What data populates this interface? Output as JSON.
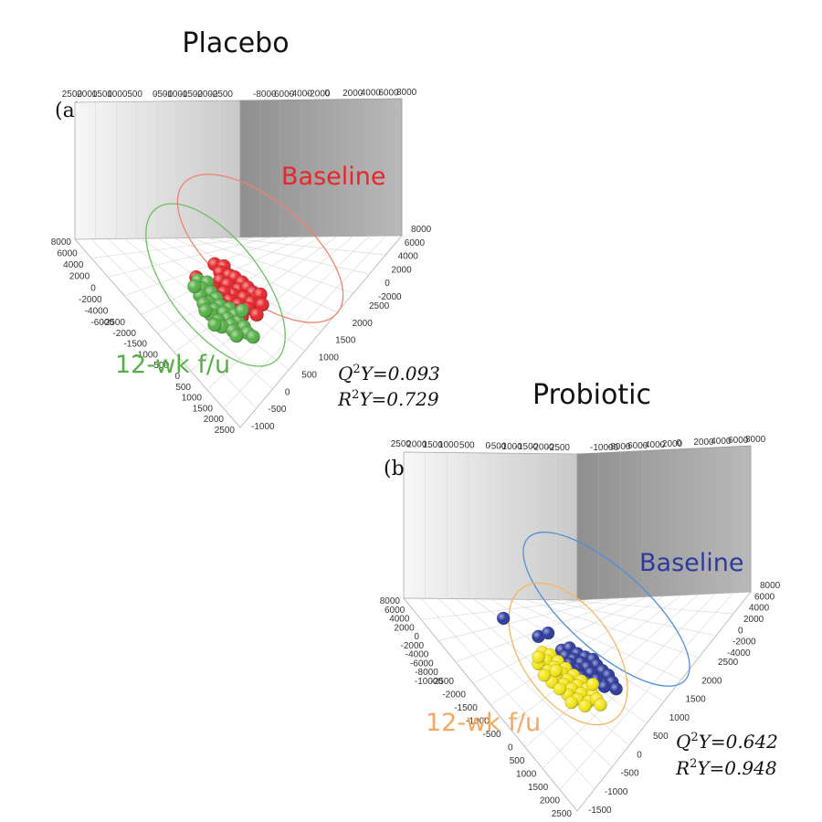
{
  "chart_data": [
    {
      "type": "scatter",
      "title": "Placebo",
      "panel_label": "(a)",
      "axis_top_ticks": [
        "-2500",
        "-2000",
        "-1500",
        "-1000",
        "-500",
        "0",
        "500",
        "1000",
        "1500",
        "2000",
        "2500"
      ],
      "axis_right_ticks": [
        "-8000",
        "-6000",
        "-4000",
        "-2000",
        "0",
        "2000",
        "4000",
        "6000",
        "8000"
      ],
      "axis_left_ticks": [
        "8000",
        "6000",
        "4000",
        "2000",
        "0",
        "-2000",
        "-4000",
        "-6000"
      ],
      "axis_bottom_ticks": [
        "-2500",
        "-2000",
        "-1500",
        "-1000",
        "-500",
        "0",
        "500",
        "1000",
        "1500",
        "2000",
        "2500"
      ],
      "axis_far_right_ticks": [
        "8000",
        "6000",
        "4000",
        "2000",
        "0",
        "-2000"
      ],
      "axis_bottom_right_ticks": [
        "2500",
        "2000",
        "1500",
        "1000",
        "500",
        "0",
        "-500",
        "-1000"
      ],
      "series": [
        {
          "name": "Baseline",
          "color": "#e8262a",
          "ellipse_color": "#f0836f",
          "points": [
            [
              0.37,
              0.22
            ],
            [
              0.42,
              0.24
            ],
            [
              0.4,
              0.3
            ],
            [
              0.45,
              0.33
            ],
            [
              0.4,
              0.38
            ],
            [
              0.48,
              0.35
            ],
            [
              0.52,
              0.4
            ],
            [
              0.44,
              0.42
            ],
            [
              0.36,
              0.45
            ],
            [
              0.5,
              0.47
            ],
            [
              0.55,
              0.45
            ],
            [
              0.58,
              0.5
            ],
            [
              0.47,
              0.52
            ],
            [
              0.42,
              0.5
            ],
            [
              0.53,
              0.55
            ],
            [
              0.6,
              0.56
            ],
            [
              0.39,
              0.55
            ],
            [
              0.45,
              0.58
            ],
            [
              0.57,
              0.6
            ],
            [
              0.5,
              0.62
            ],
            [
              0.62,
              0.52
            ],
            [
              0.34,
              0.52
            ],
            [
              0.55,
              0.66
            ],
            [
              0.48,
              0.68
            ],
            [
              0.41,
              0.62
            ],
            [
              0.63,
              0.62
            ],
            [
              0.32,
              0.48
            ],
            [
              0.27,
              0.35
            ],
            [
              0.6,
              0.72
            ],
            [
              0.52,
              0.74
            ]
          ]
        },
        {
          "name": "12-wk f/u",
          "color": "#56b046",
          "ellipse_color": "#6cc060",
          "points": [
            [
              0.28,
              0.38
            ],
            [
              0.33,
              0.4
            ],
            [
              0.3,
              0.46
            ],
            [
              0.35,
              0.5
            ],
            [
              0.29,
              0.53
            ],
            [
              0.38,
              0.56
            ],
            [
              0.34,
              0.6
            ],
            [
              0.4,
              0.63
            ],
            [
              0.31,
              0.61
            ],
            [
              0.45,
              0.66
            ],
            [
              0.37,
              0.67
            ],
            [
              0.42,
              0.7
            ],
            [
              0.48,
              0.72
            ],
            [
              0.35,
              0.72
            ],
            [
              0.44,
              0.76
            ],
            [
              0.39,
              0.78
            ],
            [
              0.5,
              0.79
            ],
            [
              0.46,
              0.82
            ],
            [
              0.41,
              0.84
            ],
            [
              0.53,
              0.84
            ],
            [
              0.47,
              0.88
            ],
            [
              0.55,
              0.9
            ],
            [
              0.32,
              0.68
            ],
            [
              0.52,
              0.68
            ],
            [
              0.26,
              0.44
            ],
            [
              0.58,
              0.94
            ],
            [
              0.37,
              0.82
            ],
            [
              0.49,
              0.93
            ]
          ]
        }
      ],
      "stats": {
        "q_label": "Q",
        "q_sup": "2",
        "q_tail": "Y=0.093",
        "r_label": "R",
        "r_sup": "2",
        "r_tail": "Y=0.729"
      }
    },
    {
      "type": "scatter",
      "title": "Probiotic",
      "panel_label": "(b)",
      "axis_top_ticks": [
        "-2500",
        "-2000",
        "-1500",
        "-1000",
        "-500",
        "0",
        "500",
        "1000",
        "1500",
        "2000",
        "2500"
      ],
      "axis_right_ticks": [
        "-10000",
        "-8000",
        "-6000",
        "-4000",
        "-2000",
        "0",
        "2000",
        "4000",
        "6000",
        "8000"
      ],
      "axis_left_ticks": [
        "8000",
        "6000",
        "4000",
        "2000",
        "0",
        "-2000",
        "-4000",
        "-6000",
        "-8000",
        "-10000"
      ],
      "axis_bottom_ticks": [
        "-2500",
        "-2000",
        "-1500",
        "-1000",
        "-500",
        "0",
        "500",
        "1000",
        "1500",
        "2000",
        "2500"
      ],
      "axis_far_right_ticks": [
        "8000",
        "6000",
        "4000",
        "2000",
        "0",
        "-2000",
        "-4000"
      ],
      "axis_bottom_right_ticks": [
        "2500",
        "2000",
        "1500",
        "1000",
        "500",
        "0",
        "-500",
        "-1000",
        "-1500"
      ],
      "series": [
        {
          "name": "Baseline",
          "color": "#2c3a9e",
          "ellipse_color": "#4f8fd8",
          "points": [
            [
              0.12,
              0.12
            ],
            [
              0.3,
              0.28
            ],
            [
              0.35,
              0.25
            ],
            [
              0.42,
              0.4
            ],
            [
              0.46,
              0.38
            ],
            [
              0.5,
              0.43
            ],
            [
              0.44,
              0.45
            ],
            [
              0.54,
              0.46
            ],
            [
              0.48,
              0.48
            ],
            [
              0.58,
              0.48
            ],
            [
              0.52,
              0.51
            ],
            [
              0.46,
              0.52
            ],
            [
              0.6,
              0.53
            ],
            [
              0.55,
              0.55
            ],
            [
              0.5,
              0.57
            ],
            [
              0.63,
              0.58
            ],
            [
              0.57,
              0.6
            ],
            [
              0.47,
              0.58
            ],
            [
              0.66,
              0.62
            ],
            [
              0.52,
              0.63
            ],
            [
              0.6,
              0.66
            ],
            [
              0.68,
              0.68
            ],
            [
              0.56,
              0.68
            ],
            [
              0.64,
              0.72
            ],
            [
              0.43,
              0.55
            ],
            [
              0.7,
              0.74
            ]
          ]
        },
        {
          "name": "12-wk f/u",
          "color": "#f5e617",
          "ellipse_color": "#f4b860",
          "points": [
            [
              0.32,
              0.42
            ],
            [
              0.36,
              0.44
            ],
            [
              0.34,
              0.49
            ],
            [
              0.4,
              0.5
            ],
            [
              0.3,
              0.52
            ],
            [
              0.38,
              0.55
            ],
            [
              0.44,
              0.56
            ],
            [
              0.35,
              0.58
            ],
            [
              0.42,
              0.6
            ],
            [
              0.48,
              0.62
            ],
            [
              0.39,
              0.63
            ],
            [
              0.45,
              0.66
            ],
            [
              0.52,
              0.67
            ],
            [
              0.43,
              0.7
            ],
            [
              0.5,
              0.71
            ],
            [
              0.37,
              0.68
            ],
            [
              0.47,
              0.74
            ],
            [
              0.55,
              0.74
            ],
            [
              0.52,
              0.78
            ],
            [
              0.45,
              0.79
            ],
            [
              0.58,
              0.79
            ],
            [
              0.5,
              0.83
            ],
            [
              0.56,
              0.85
            ],
            [
              0.33,
              0.62
            ],
            [
              0.6,
              0.83
            ],
            [
              0.41,
              0.74
            ],
            [
              0.54,
              0.89
            ],
            [
              0.47,
              0.86
            ],
            [
              0.39,
              0.58
            ],
            [
              0.3,
              0.46
            ],
            [
              0.58,
              0.7
            ],
            [
              0.62,
              0.88
            ]
          ]
        }
      ],
      "stats": {
        "q_label": "Q",
        "q_sup": "2",
        "q_tail": "Y=0.642",
        "r_label": "R",
        "r_sup": "2",
        "r_tail": "Y=0.948"
      }
    }
  ]
}
